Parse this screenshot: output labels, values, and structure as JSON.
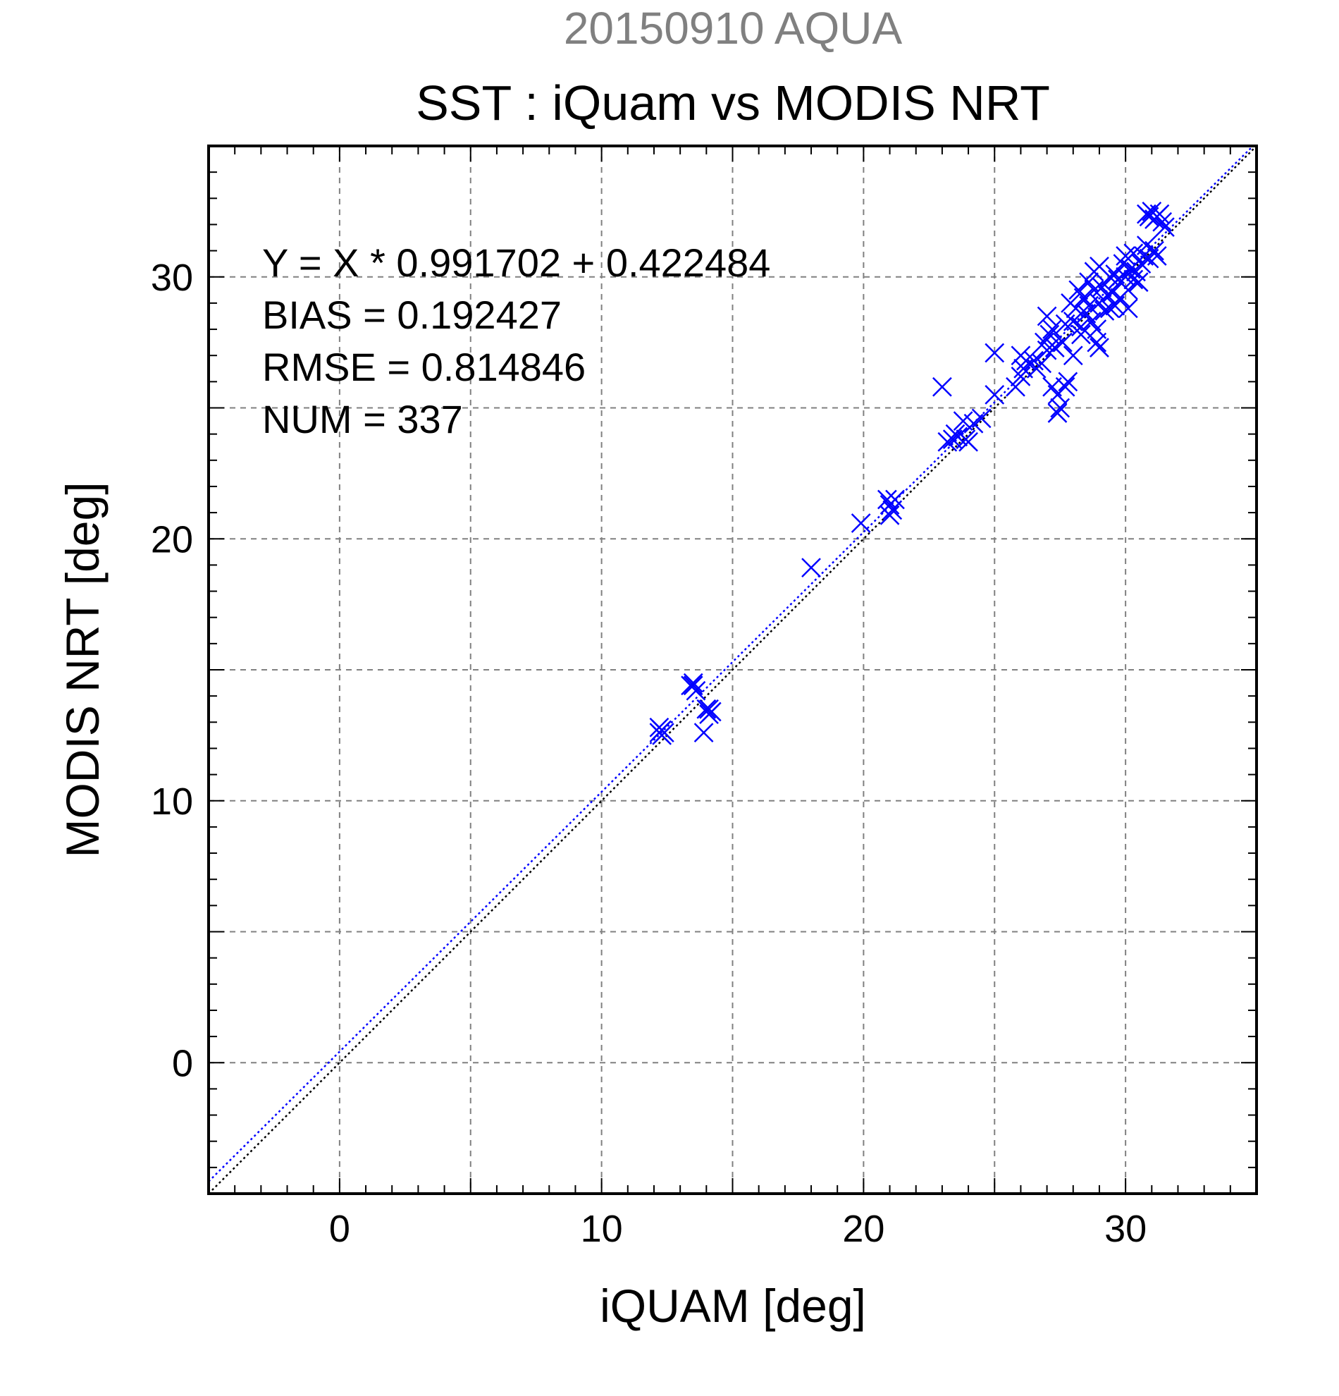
{
  "chart_data": {
    "type": "scatter",
    "title": "SST : iQuam vs MODIS NRT",
    "subtitle": "20150910 AQUA",
    "xlabel": "iQUAM [deg]",
    "ylabel": "MODIS NRT [deg]",
    "xlim": [
      -5,
      35
    ],
    "ylim": [
      -5,
      35
    ],
    "xticks": [
      0,
      10,
      20,
      30
    ],
    "yticks": [
      0,
      10,
      20,
      30
    ],
    "minor_step": 1,
    "grid_step": 5,
    "grid": true,
    "stats": {
      "fit_label": "Y = X * 0.991702 + 0.422484",
      "bias_label": "BIAS = 0.192427",
      "rmse_label": "RMSE = 0.814846",
      "num_label": "NUM = 337"
    },
    "fit_line": {
      "slope": 0.991702,
      "intercept": 0.422484,
      "color": "#0000ff",
      "style": "dotted"
    },
    "identity_line": {
      "slope": 1,
      "intercept": 0,
      "color": "#000000",
      "style": "dotted"
    },
    "marker": {
      "shape": "x",
      "color": "#0000ff"
    },
    "subtitle_color": "#808080",
    "series": [
      {
        "points": [
          [
            12.2,
            12.6
          ],
          [
            12.3,
            12.7
          ],
          [
            12.4,
            12.6
          ],
          [
            12.2,
            12.8
          ],
          [
            12.3,
            12.5
          ],
          [
            13.4,
            14.4
          ],
          [
            13.5,
            14.4
          ],
          [
            13.6,
            14.2
          ],
          [
            13.5,
            14.5
          ],
          [
            14.0,
            13.5
          ],
          [
            14.1,
            13.3
          ],
          [
            14.2,
            13.4
          ],
          [
            14.1,
            13.5
          ],
          [
            13.9,
            12.6
          ],
          [
            18.0,
            18.9
          ],
          [
            19.9,
            20.6
          ],
          [
            20.9,
            21.5
          ],
          [
            21.0,
            21.3
          ],
          [
            21.1,
            21.1
          ],
          [
            21.2,
            21.5
          ],
          [
            21.0,
            20.9
          ],
          [
            23.0,
            25.8
          ],
          [
            23.2,
            23.7
          ],
          [
            23.4,
            23.8
          ],
          [
            23.5,
            24.0
          ],
          [
            23.6,
            23.9
          ],
          [
            23.8,
            24.5
          ],
          [
            23.9,
            23.8
          ],
          [
            24.0,
            23.7
          ],
          [
            24.2,
            24.4
          ],
          [
            24.5,
            24.6
          ],
          [
            25.0,
            25.5
          ],
          [
            25.0,
            27.1
          ],
          [
            25.8,
            25.8
          ],
          [
            26.0,
            26.2
          ],
          [
            26.1,
            26.5
          ],
          [
            26.0,
            27.0
          ],
          [
            26.2,
            26.8
          ],
          [
            26.5,
            26.8
          ],
          [
            26.6,
            26.5
          ],
          [
            26.8,
            26.7
          ],
          [
            26.9,
            27.5
          ],
          [
            27.0,
            27.2
          ],
          [
            27.0,
            28.5
          ],
          [
            27.1,
            27.8
          ],
          [
            27.2,
            28.0
          ],
          [
            27.2,
            25.8
          ],
          [
            27.3,
            27.3
          ],
          [
            27.4,
            25.5
          ],
          [
            27.5,
            25.0
          ],
          [
            27.4,
            24.8
          ],
          [
            27.6,
            27.5
          ],
          [
            27.7,
            28.2
          ],
          [
            27.7,
            25.8
          ],
          [
            27.8,
            26.0
          ],
          [
            27.9,
            29.0
          ],
          [
            28.0,
            28.3
          ],
          [
            28.0,
            27.0
          ],
          [
            28.1,
            28.8
          ],
          [
            28.2,
            29.5
          ],
          [
            28.3,
            28.1
          ],
          [
            28.3,
            27.8
          ],
          [
            28.4,
            29.2
          ],
          [
            28.5,
            28.6
          ],
          [
            28.6,
            28.9
          ],
          [
            28.6,
            29.8
          ],
          [
            28.7,
            28.3
          ],
          [
            28.8,
            30.2
          ],
          [
            28.8,
            29.5
          ],
          [
            28.9,
            28.0
          ],
          [
            28.9,
            27.5
          ],
          [
            29.0,
            29.0
          ],
          [
            29.0,
            30.4
          ],
          [
            29.0,
            27.3
          ],
          [
            29.1,
            29.6
          ],
          [
            29.2,
            28.7
          ],
          [
            29.3,
            29.3
          ],
          [
            29.4,
            30.0
          ],
          [
            29.4,
            28.8
          ],
          [
            29.5,
            29.4
          ],
          [
            29.6,
            30.1
          ],
          [
            29.6,
            28.9
          ],
          [
            29.7,
            29.9
          ],
          [
            29.8,
            29.2
          ],
          [
            29.9,
            30.5
          ],
          [
            30.0,
            30.0
          ],
          [
            30.0,
            30.8
          ],
          [
            30.1,
            29.5
          ],
          [
            30.1,
            28.8
          ],
          [
            30.2,
            30.3
          ],
          [
            30.3,
            29.9
          ],
          [
            30.3,
            30.9
          ],
          [
            30.4,
            30.2
          ],
          [
            30.5,
            29.8
          ],
          [
            30.6,
            30.5
          ],
          [
            30.7,
            30.8
          ],
          [
            30.8,
            31.2
          ],
          [
            30.9,
            30.7
          ],
          [
            30.8,
            32.4
          ],
          [
            30.9,
            32.3
          ],
          [
            31.0,
            32.5
          ],
          [
            31.1,
            32.2
          ],
          [
            31.2,
            32.3
          ],
          [
            31.3,
            32.4
          ],
          [
            31.4,
            32.1
          ],
          [
            31.1,
            31.0
          ],
          [
            31.5,
            31.9
          ],
          [
            31.2,
            30.8
          ]
        ]
      }
    ]
  }
}
